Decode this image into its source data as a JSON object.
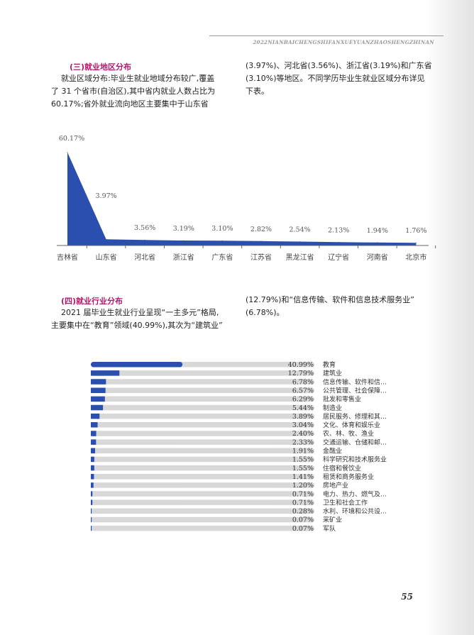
{
  "header": {
    "running_title": "2022NIANBAICHENGSHIFANXUEYUANZHAOSHENGZHINAN"
  },
  "section3": {
    "title": "(三)就业地区分布",
    "left_lines": [
      "就业区域分布:毕业生就业地域分布较广,覆盖",
      "了 31 个省市(自治区),其中省内就业人数占比为",
      "60.17%;省外就业流向地区主要集中于山东省"
    ],
    "right_lines": [
      "(3.97%)、河北省(3.56%)、浙江省(3.19%)和广东省",
      "(3.10%)等地区。不同学历毕业生就业区域分布详见",
      "下表。"
    ]
  },
  "section4": {
    "title": "(四)就业行业分布",
    "left_lines": [
      "2021 届毕业生就业行业呈现“一主多元”格局,",
      "主要集中在“教育”领域(40.99%),其次为“建筑业”"
    ],
    "right_lines": [
      "(12.79%)和“信息传输、软件和信息技术服务业”",
      "(6.78%)。"
    ]
  },
  "chart_data": [
    {
      "type": "area",
      "categories": [
        "吉林省",
        "山东省",
        "河北省",
        "浙江省",
        "广东省",
        "江苏省",
        "黑龙江省",
        "辽宁省",
        "河南省",
        "北京市"
      ],
      "values": [
        60.17,
        3.97,
        3.56,
        3.19,
        3.1,
        2.82,
        2.54,
        2.13,
        1.94,
        1.76
      ],
      "value_labels": [
        "60.17%",
        "3.97%",
        "3.56%",
        "3.19%",
        "3.10%",
        "2.82%",
        "2.54%",
        "2.13%",
        "1.94%",
        "1.76%"
      ],
      "ylim": [
        0,
        65
      ],
      "grid": false,
      "color": "#2b4fae"
    },
    {
      "type": "bar",
      "orientation": "horizontal",
      "categories": [
        "教育",
        "建筑业",
        "信息传输、软件和信…",
        "公共管理、社会保障…",
        "批发和零售业",
        "制造业",
        "居民服务、修理和其…",
        "文化、体育和娱乐业",
        "农、林、牧、渔业",
        "交通运输、仓储和邮…",
        "金融业",
        "科学研究和技术服务业",
        "住宿和餐饮业",
        "租赁和商务服务业",
        "房地产业",
        "电力、热力、燃气及…",
        "卫生和社会工作",
        "水利、环境和公共设…",
        "采矿业",
        "军队"
      ],
      "values": [
        40.99,
        12.79,
        6.78,
        6.57,
        6.29,
        5.44,
        3.89,
        3.04,
        2.4,
        2.33,
        1.91,
        1.55,
        1.55,
        1.41,
        1.2,
        0.71,
        0.71,
        0.28,
        0.07,
        0.07
      ],
      "value_labels": [
        "40.99%",
        "12.79%",
        "6.78%",
        "6.57%",
        "6.29%",
        "5.44%",
        "3.89%",
        "3.04%",
        "2.40%",
        "2.33%",
        "1.91%",
        "1.55%",
        "1.55%",
        "1.41%",
        "1.20%",
        "0.71%",
        "0.71%",
        "0.28%",
        "0.07%",
        "0.07%"
      ],
      "xlim": [
        0,
        100
      ],
      "grid": false,
      "bar_color": "#2b4fae",
      "track_color": "#d8d8d8"
    }
  ],
  "footer": {
    "page_number": "55"
  }
}
